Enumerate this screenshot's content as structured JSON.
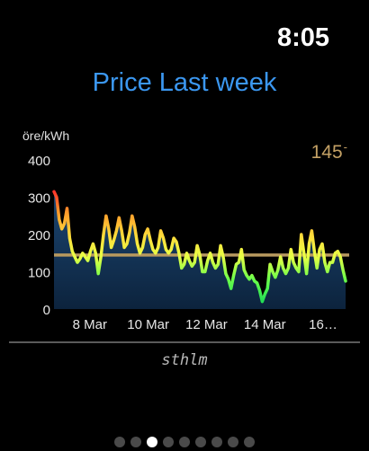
{
  "status_bar": {
    "time": "8:05"
  },
  "page": {
    "title": "Price Last week",
    "region": "sthlm",
    "page_count": 9,
    "active_page": 2
  },
  "average": {
    "value": "145",
    "suffix": "-"
  },
  "chart_data": {
    "type": "area",
    "ylabel": "öre/kWh",
    "ylim": [
      0,
      400
    ],
    "yticks": [
      "0",
      "100",
      "200",
      "300",
      "400"
    ],
    "xticks": [
      {
        "label": "8 Mar",
        "x": 29.5
      },
      {
        "label": "10 Mar",
        "x": 77.5
      },
      {
        "label": "12 Mar",
        "x": 125.5
      },
      {
        "label": "14 Mar",
        "x": 173.5
      },
      {
        "label": "16…",
        "x": 221.5
      }
    ],
    "xlim": [
      0,
      240
    ],
    "average_line": 145,
    "series": [
      {
        "values": [
          [
            0,
            315
          ],
          [
            1,
            300
          ],
          [
            2,
            240
          ],
          [
            3,
            215
          ],
          [
            4,
            230
          ],
          [
            5,
            270
          ],
          [
            6,
            190
          ],
          [
            7,
            155
          ],
          [
            8,
            140
          ],
          [
            9,
            125
          ],
          [
            10,
            135
          ],
          [
            11,
            150
          ],
          [
            12,
            140
          ],
          [
            13,
            130
          ],
          [
            14,
            155
          ],
          [
            15,
            175
          ],
          [
            16,
            150
          ],
          [
            17,
            95
          ],
          [
            18,
            140
          ],
          [
            19,
            200
          ],
          [
            20,
            250
          ],
          [
            21,
            215
          ],
          [
            22,
            165
          ],
          [
            23,
            185
          ],
          [
            24,
            210
          ],
          [
            25,
            245
          ],
          [
            26,
            210
          ],
          [
            27,
            165
          ],
          [
            28,
            175
          ],
          [
            29,
            205
          ],
          [
            30,
            250
          ],
          [
            31,
            220
          ],
          [
            32,
            175
          ],
          [
            33,
            150
          ],
          [
            34,
            165
          ],
          [
            35,
            200
          ],
          [
            36,
            215
          ],
          [
            37,
            185
          ],
          [
            38,
            160
          ],
          [
            39,
            150
          ],
          [
            40,
            165
          ],
          [
            41,
            210
          ],
          [
            42,
            190
          ],
          [
            43,
            160
          ],
          [
            44,
            150
          ],
          [
            45,
            160
          ],
          [
            46,
            190
          ],
          [
            47,
            180
          ],
          [
            48,
            150
          ],
          [
            49,
            110
          ],
          [
            50,
            120
          ],
          [
            51,
            150
          ],
          [
            52,
            130
          ],
          [
            53,
            115
          ],
          [
            54,
            125
          ],
          [
            55,
            170
          ],
          [
            56,
            145
          ],
          [
            57,
            100
          ],
          [
            58,
            100
          ],
          [
            59,
            130
          ],
          [
            60,
            150
          ],
          [
            61,
            125
          ],
          [
            62,
            110
          ],
          [
            63,
            120
          ],
          [
            64,
            170
          ],
          [
            65,
            140
          ],
          [
            66,
            95
          ],
          [
            67,
            80
          ],
          [
            68,
            55
          ],
          [
            69,
            90
          ],
          [
            70,
            120
          ],
          [
            71,
            125
          ],
          [
            72,
            160
          ],
          [
            73,
            105
          ],
          [
            74,
            90
          ],
          [
            75,
            80
          ],
          [
            76,
            90
          ],
          [
            77,
            75
          ],
          [
            78,
            70
          ],
          [
            79,
            50
          ],
          [
            80,
            20
          ],
          [
            81,
            40
          ],
          [
            82,
            55
          ],
          [
            83,
            120
          ],
          [
            84,
            100
          ],
          [
            85,
            85
          ],
          [
            86,
            105
          ],
          [
            87,
            140
          ],
          [
            88,
            110
          ],
          [
            89,
            95
          ],
          [
            90,
            110
          ],
          [
            91,
            160
          ],
          [
            92,
            125
          ],
          [
            93,
            110
          ],
          [
            94,
            100
          ],
          [
            95,
            200
          ],
          [
            96,
            150
          ],
          [
            97,
            95
          ],
          [
            98,
            175
          ],
          [
            99,
            210
          ],
          [
            100,
            155
          ],
          [
            101,
            110
          ],
          [
            102,
            160
          ],
          [
            103,
            175
          ],
          [
            104,
            125
          ],
          [
            105,
            100
          ],
          [
            106,
            125
          ],
          [
            107,
            125
          ],
          [
            108,
            150
          ],
          [
            109,
            155
          ],
          [
            110,
            140
          ],
          [
            111,
            105
          ],
          [
            112,
            75
          ]
        ]
      }
    ],
    "gradient_colors": [
      "#ff2b2b",
      "#ff9a2a",
      "#ffd93a",
      "#e8ff45",
      "#6cff4a",
      "#22dd55"
    ]
  }
}
